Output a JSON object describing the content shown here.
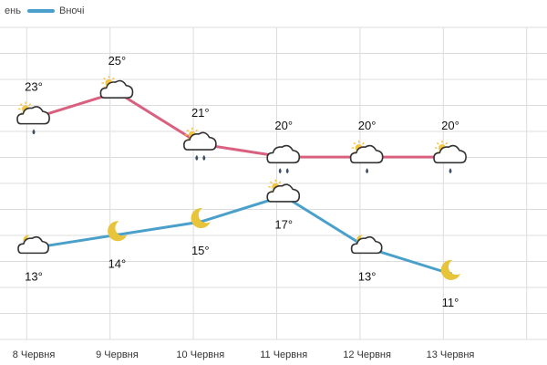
{
  "legend": {
    "day_label": "ень",
    "night_label": "Вночі"
  },
  "colors": {
    "day": "#d9607f",
    "night": "#4aa0cb",
    "grid": "#dcdcdc",
    "sun": "#f4c542",
    "moon": "#e8c43a",
    "cloud_stroke": "#333333",
    "rain": "#3d4f63"
  },
  "chart_data": {
    "type": "line",
    "title": "",
    "xlabel": "",
    "ylabel": "",
    "categories": [
      "8 Червня",
      "9 Червня",
      "10 Червня",
      "11 Червня",
      "12 Червня",
      "13 Червня"
    ],
    "ylim": [
      9,
      28
    ],
    "grid": "horizontal and vertical",
    "legend_position": "top-left",
    "series": [
      {
        "key": "day",
        "values": [
          23,
          25,
          21,
          20,
          20,
          20
        ],
        "labels": [
          "23°",
          "25°",
          "21°",
          "20°",
          "20°",
          "20°"
        ],
        "icons": [
          "cloud-sun-rain",
          "cloud-sun",
          "cloud-sun-rain",
          "cloud-rain",
          "cloud-sun-rain",
          "cloud-sun-rain"
        ],
        "rain_drops": [
          1,
          0,
          2,
          2,
          1,
          1
        ]
      },
      {
        "key": "night",
        "values": [
          13,
          14,
          15,
          17,
          13,
          11
        ],
        "labels": [
          "13°",
          "14°",
          "15°",
          "17°",
          "13°",
          "11°"
        ],
        "icons": [
          "cloud-moon",
          "moon",
          "moon",
          "cloud-sun",
          "cloud-moon",
          "moon"
        ]
      }
    ]
  }
}
